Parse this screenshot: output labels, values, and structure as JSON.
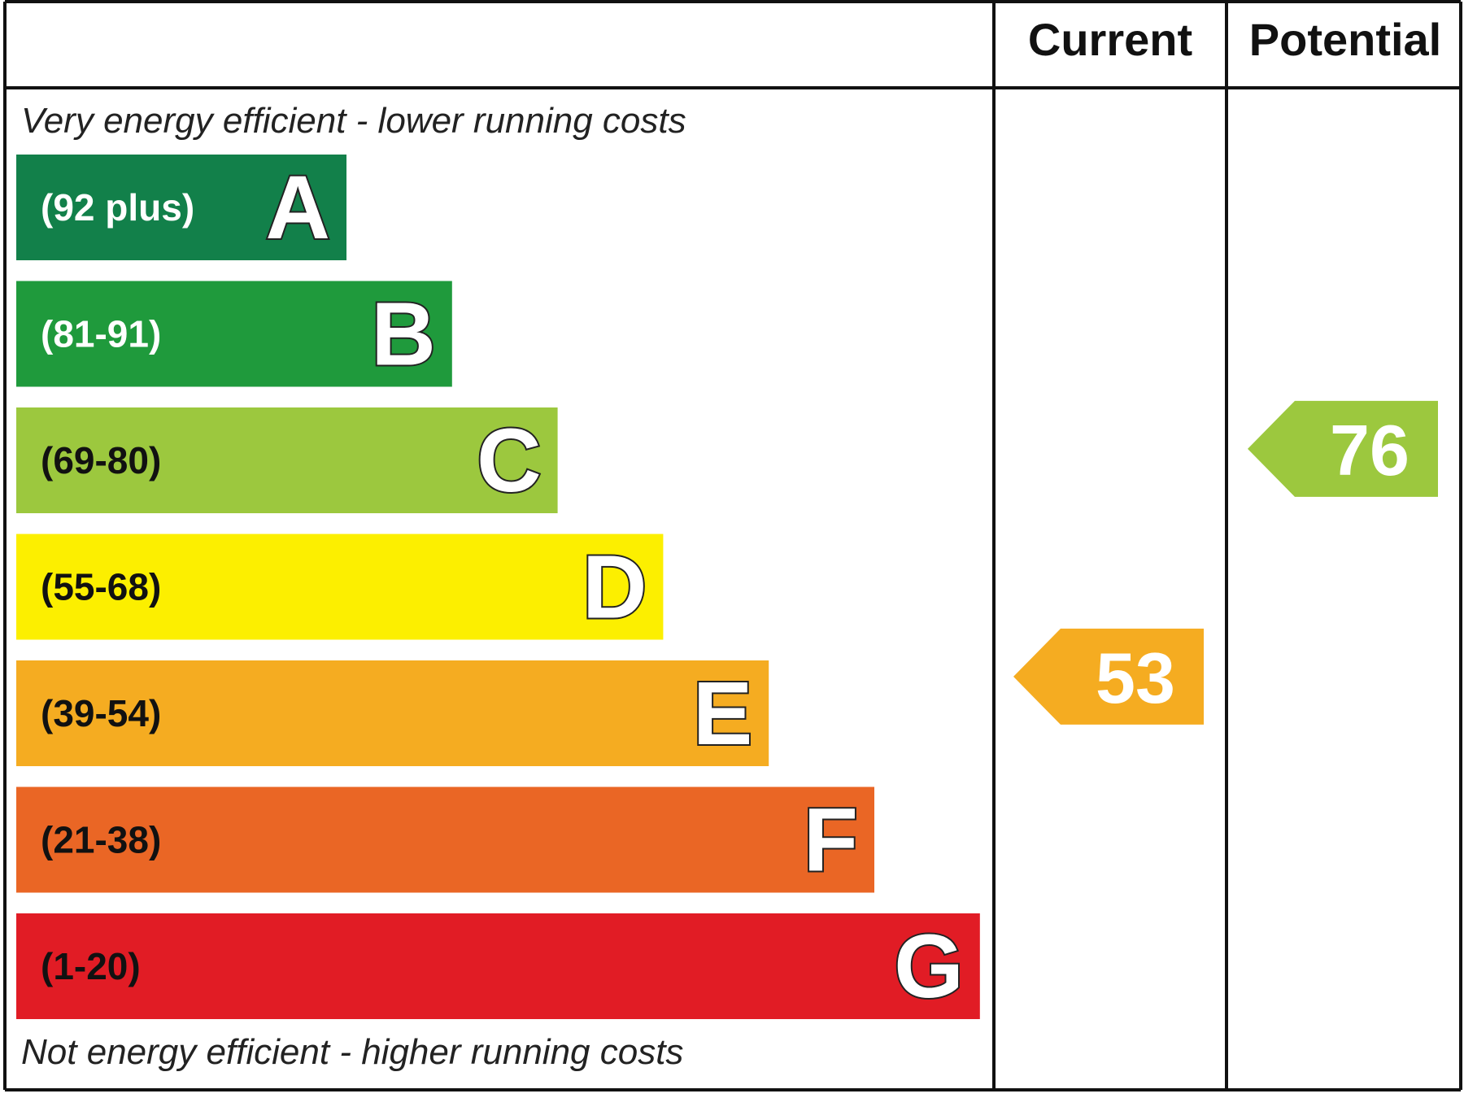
{
  "chart_data": {
    "type": "bar",
    "headers": {
      "current": "Current",
      "potential": "Potential"
    },
    "top_note": "Very energy efficient - lower running costs",
    "bottom_note": "Not energy efficient - higher running costs",
    "bands": [
      {
        "letter": "A",
        "range": "(92 plus)",
        "min": 92,
        "max": null,
        "color": "#12804A",
        "range_text_color": "#ffffff"
      },
      {
        "letter": "B",
        "range": "(81-91)",
        "min": 81,
        "max": 91,
        "color": "#1F9A3C",
        "range_text_color": "#ffffff"
      },
      {
        "letter": "C",
        "range": "(69-80)",
        "min": 69,
        "max": 80,
        "color": "#9CC83E",
        "range_text_color": "#111111"
      },
      {
        "letter": "D",
        "range": "(55-68)",
        "min": 55,
        "max": 68,
        "color": "#FCEF00",
        "range_text_color": "#111111"
      },
      {
        "letter": "E",
        "range": "(39-54)",
        "min": 39,
        "max": 54,
        "color": "#F5AC21",
        "range_text_color": "#111111"
      },
      {
        "letter": "F",
        "range": "(21-38)",
        "min": 21,
        "max": 38,
        "color": "#EA6625",
        "range_text_color": "#111111"
      },
      {
        "letter": "G",
        "range": "(1-20)",
        "min": 1,
        "max": 20,
        "color": "#E11C25",
        "range_text_color": "#111111"
      }
    ],
    "ratings": {
      "current": {
        "value": 53,
        "band": "E",
        "color": "#F5AC21"
      },
      "potential": {
        "value": 76,
        "band": "C",
        "color": "#9CC83E"
      }
    }
  }
}
